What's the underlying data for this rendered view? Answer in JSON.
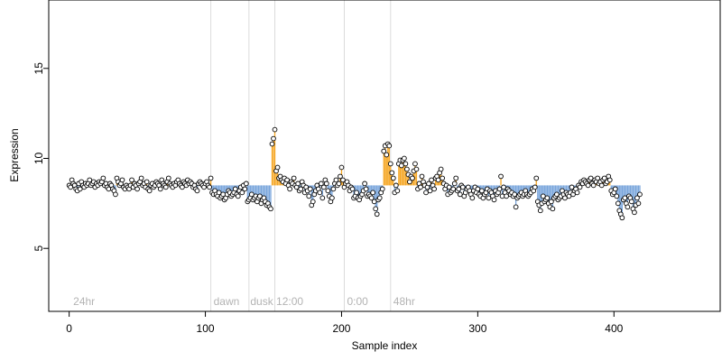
{
  "chart_data": {
    "type": "scatter",
    "title": "",
    "xlabel": "Sample index",
    "ylabel": "Expression",
    "xlim": [
      -15,
      478
    ],
    "ylim": [
      1.5,
      18.8
    ],
    "xticks": [
      0,
      100,
      200,
      300,
      400
    ],
    "yticks": [
      5,
      10,
      15
    ],
    "grid": false,
    "baseline_expression": 8.5,
    "colors": {
      "above_baseline": "#f5a623",
      "below_baseline": "#7aa6dc",
      "point_fill": "#ffffff",
      "point_stroke": "#000000",
      "divider": "#dcdcdc",
      "region_label": "#b3b3b3"
    },
    "dividers_x": [
      104,
      132,
      151,
      202,
      236
    ],
    "region_labels": [
      {
        "text": "24hr",
        "x": 3
      },
      {
        "text": "dawn",
        "x": 106
      },
      {
        "text": "dusk",
        "x": 133
      },
      {
        "text": "12:00",
        "x": 152
      },
      {
        "text": "0:00",
        "x": 204
      },
      {
        "text": "48hr",
        "x": 238
      }
    ],
    "series": [
      {
        "x_start": 0,
        "values": [
          8.5,
          8.4,
          8.8,
          8.6,
          8.5,
          8.3,
          8.2,
          8.6,
          8.3,
          8.7,
          8.5,
          8.4,
          8.6,
          8.5,
          8.6,
          8.8,
          8.5,
          8.6,
          8.7,
          8.4,
          8.6,
          8.5,
          8.7,
          8.6,
          8.7,
          8.9,
          8.5,
          8.6,
          8.4,
          8.3,
          8.6,
          8.5,
          8.3,
          8.2,
          8.0,
          8.9,
          8.7,
          8.5,
          8.6,
          8.8,
          8.4,
          8.3,
          8.5,
          8.4,
          8.3,
          8.5,
          8.8,
          8.4,
          8.6,
          8.5,
          8.3,
          8.6,
          8.7,
          8.9,
          8.5,
          8.6,
          8.4,
          8.7,
          8.3,
          8.2,
          8.5,
          8.6,
          8.4,
          8.5,
          8.7,
          8.6,
          8.5,
          8.3,
          8.8,
          8.6,
          8.5,
          8.4,
          8.7,
          8.9,
          8.6,
          8.5,
          8.4,
          8.6,
          8.5,
          8.7,
          8.8,
          8.6,
          8.5,
          8.4,
          8.7,
          8.6,
          8.5,
          8.8,
          8.6,
          8.7,
          8.6,
          8.4,
          8.5,
          8.3,
          8.2,
          8.6,
          8.7,
          8.6,
          8.5,
          8.4,
          8.6,
          8.7,
          8.5,
          8.4,
          8.9,
          8.1,
          8.0,
          8.2,
          8.0,
          7.9,
          8.1,
          7.8,
          7.9,
          8.0,
          7.7,
          7.8,
          8.0,
          8.2,
          8.1,
          7.9,
          8.0,
          8.1,
          8.3,
          8.0,
          7.9,
          8.2,
          8.4,
          8.1,
          8.5,
          8.3,
          8.6,
          7.6,
          7.7,
          7.8,
          8.0,
          7.7,
          7.8,
          7.9,
          7.6,
          7.8,
          7.9,
          7.5,
          7.7,
          7.8,
          7.6,
          7.4,
          7.5,
          7.3,
          7.2,
          10.8,
          11.1,
          11.6,
          9.3,
          9.5,
          8.9,
          9.0,
          8.8,
          8.7,
          8.9,
          8.6,
          8.8,
          8.5,
          8.3,
          8.7,
          8.6,
          8.9,
          8.5,
          8.4,
          8.6,
          8.2,
          8.3,
          8.7,
          8.5,
          8.1,
          8.4,
          8.2,
          7.9,
          8.3,
          7.4,
          7.6,
          8.0,
          8.2,
          8.5,
          8.3,
          8.1,
          8.6,
          7.8,
          8.4,
          8.8,
          8.6,
          8.2,
          7.9,
          7.6,
          7.8,
          8.3,
          8.6,
          8.8,
          8.5,
          8.6,
          9.0,
          9.5,
          8.8,
          8.4,
          8.6,
          8.7,
          8.5,
          8.2,
          8.4,
          8.3,
          7.8,
          7.9,
          8.1,
          7.8,
          7.7,
          7.9,
          8.0,
          8.2,
          8.6,
          8.3,
          7.9,
          8.0,
          7.9,
          7.8,
          8.1,
          7.6,
          7.2,
          6.9,
          7.7,
          7.8,
          8.1,
          8.3,
          10.4,
          10.7,
          10.2,
          10.8,
          10.7,
          9.7,
          9.2,
          8.9,
          8.1,
          8.5,
          8.2,
          9.7,
          9.9,
          9.6,
          9.9,
          10.0,
          9.7,
          9.4,
          9.1,
          8.7,
          9.0,
          8.9,
          9.3,
          9.7,
          9.4,
          8.3,
          8.6,
          8.4,
          9.0,
          8.7,
          8.5,
          8.1,
          8.4,
          8.6,
          8.2,
          8.8,
          8.5,
          8.3,
          8.9,
          9.0,
          8.8,
          9.2,
          9.4,
          8.9,
          8.6,
          8.3,
          8.5,
          8.0,
          8.4,
          8.1,
          8.2,
          8.3,
          8.6,
          8.9,
          8.2,
          8.3,
          8.0,
          8.5,
          8.4,
          7.9,
          8.1,
          8.3,
          8.4,
          8.2,
          8.0,
          7.8,
          8.2,
          8.4,
          8.1,
          8.3,
          8.0,
          7.9,
          8.2,
          7.8,
          8.0,
          8.1,
          8.3,
          7.8,
          8.2,
          8.1,
          7.9,
          7.7,
          8.2,
          8.0,
          8.1,
          8.3,
          9.0,
          7.9,
          8.4,
          8.1,
          7.9,
          8.3,
          8.2,
          8.0,
          8.1,
          7.9,
          8.0,
          7.3,
          7.8,
          7.9,
          8.0,
          8.1,
          7.9,
          8.0,
          8.2,
          8.0,
          7.9,
          8.0,
          8.1,
          8.3,
          8.2,
          8.4,
          8.9,
          7.6,
          7.4,
          7.1,
          7.5,
          7.9,
          7.6,
          7.7,
          7.8,
          7.5,
          7.3,
          7.6,
          7.2,
          7.8,
          7.9,
          8.0,
          7.7,
          7.8,
          7.9,
          8.2,
          8.0,
          7.8,
          8.1,
          8.0,
          7.9,
          8.1,
          8.4,
          8.0,
          8.2,
          8.3,
          8.1,
          8.5,
          8.4,
          8.7,
          8.6,
          8.8,
          8.7,
          8.6,
          8.5,
          8.8,
          8.9,
          8.6,
          8.5,
          8.8,
          8.7,
          8.9,
          8.6,
          8.7,
          8.5,
          8.8,
          8.9,
          8.6,
          8.7,
          9.0,
          8.8,
          8.2,
          8.0,
          8.1,
          8.3,
          7.9,
          7.5,
          7.1,
          6.9,
          6.7,
          7.7,
          7.8,
          7.5,
          7.3,
          7.9,
          7.8,
          7.6,
          7.2,
          7.0,
          7.4,
          7.8,
          7.5,
          8.0
        ]
      }
    ]
  }
}
